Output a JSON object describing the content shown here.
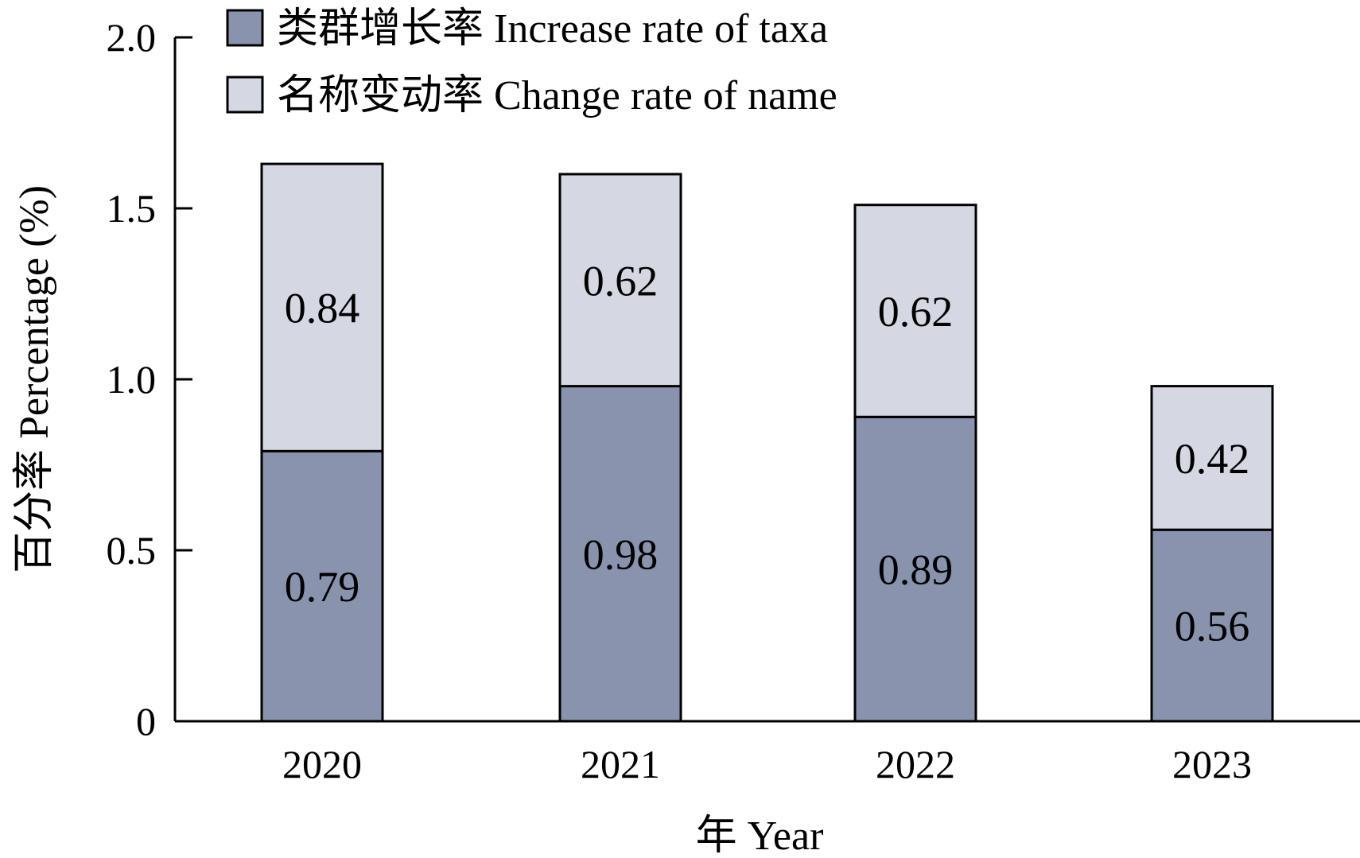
{
  "chart_data": {
    "type": "bar",
    "stacked": true,
    "categories": [
      "2020",
      "2021",
      "2022",
      "2023"
    ],
    "series": [
      {
        "name": "类群增长率 Increase rate of taxa",
        "values": [
          0.79,
          0.98,
          0.89,
          0.56
        ],
        "color": "#8a93ae"
      },
      {
        "name": "名称变动率 Change rate of name",
        "values": [
          0.84,
          0.62,
          0.62,
          0.42
        ],
        "color": "#d5d7e2"
      }
    ],
    "data_labels": [
      [
        "0.79",
        "0.98",
        "0.89",
        "0.56"
      ],
      [
        "0.84",
        "0.62",
        "0.62",
        "0.42"
      ]
    ],
    "xlabel": "年 Year",
    "ylabel": "百分率 Percentage (%)",
    "ylim": [
      0,
      2.0
    ],
    "yticks": [
      0,
      0.5,
      1.0,
      1.5,
      2.0
    ],
    "ytick_labels": [
      "0",
      "0.5",
      "1.0",
      "1.5",
      "2.0"
    ],
    "grid": false,
    "legend_position": "top-left"
  }
}
